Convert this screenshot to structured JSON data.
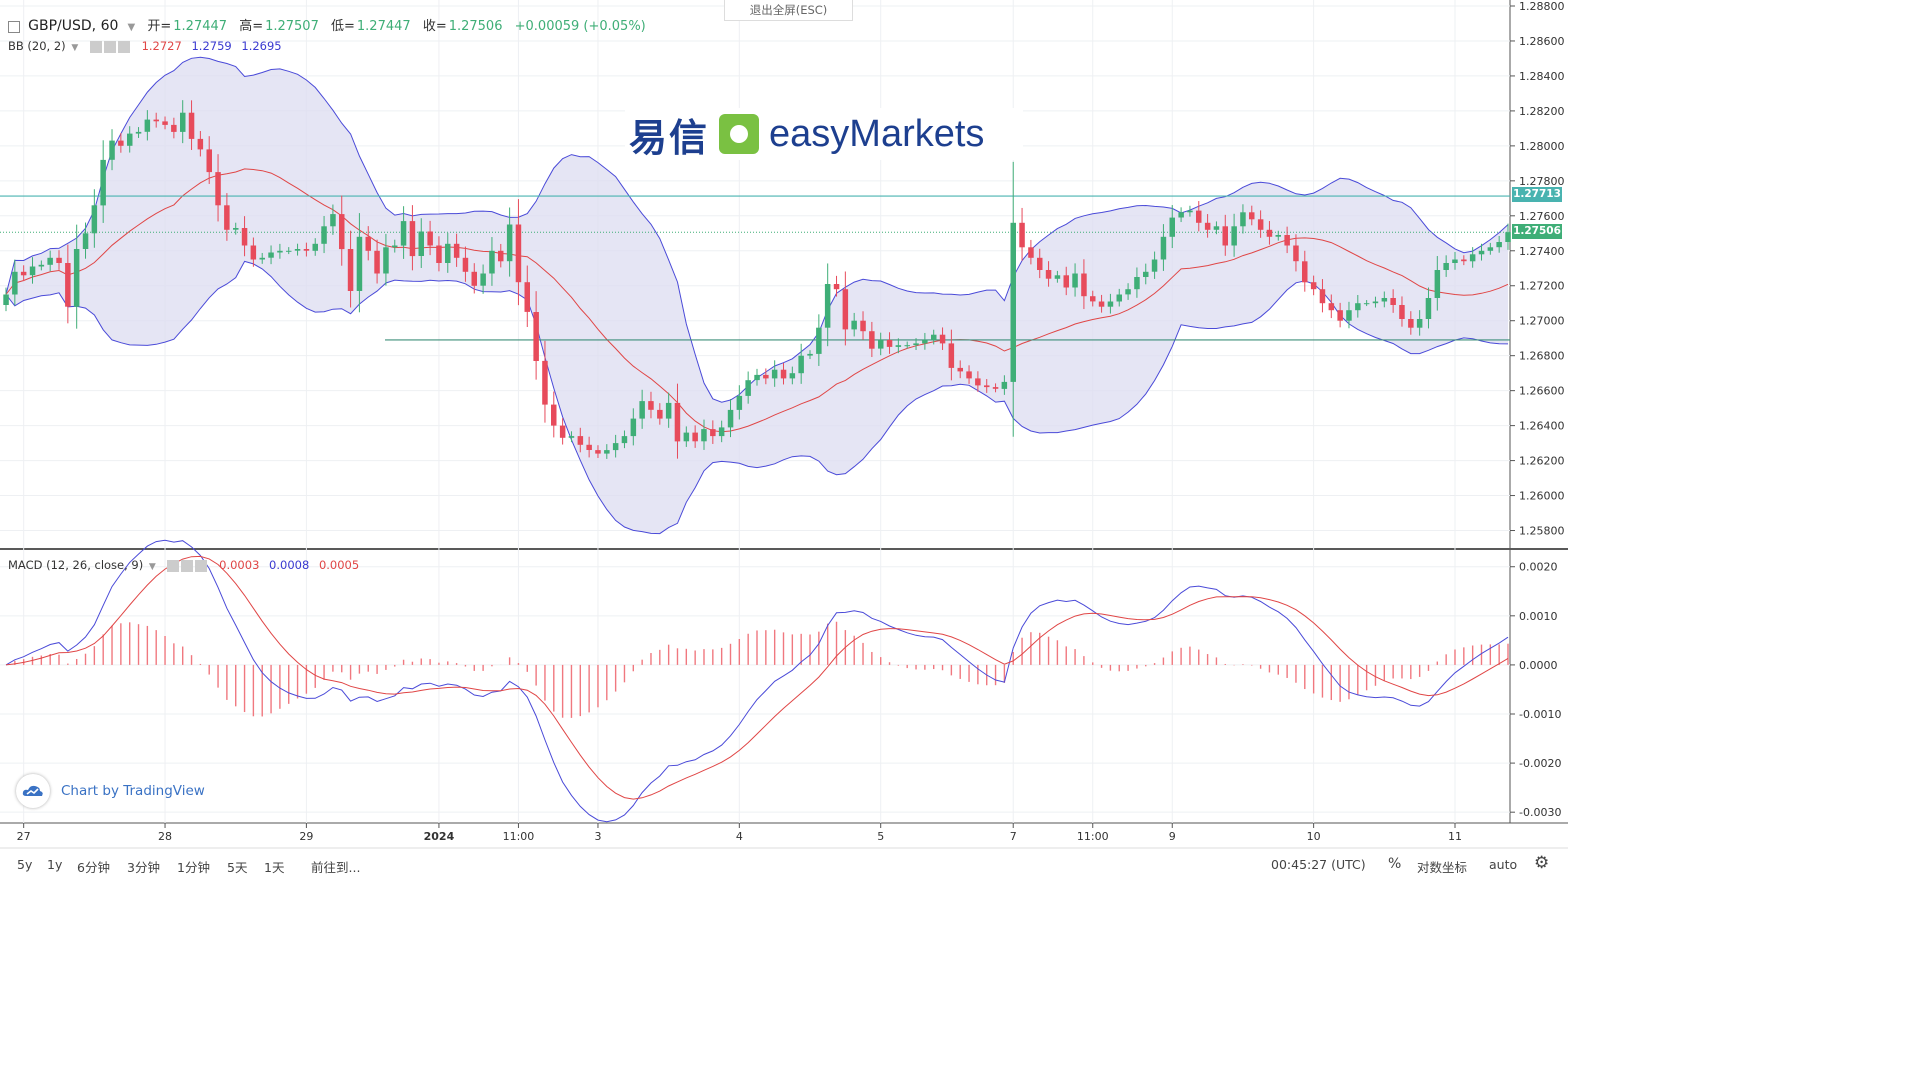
{
  "header": {
    "symbol": "GBP/USD, 60",
    "open_label": "开=",
    "open_value": "1.27447",
    "high_label": "高=",
    "high_value": "1.27507",
    "low_label": "低=",
    "low_value": "1.27447",
    "close_label": "收=",
    "close_value": "1.27506",
    "change": "+0.00059 (+0.05%)"
  },
  "bb": {
    "label": "BB (20, 2)",
    "v1": "1.2727",
    "v2": "1.2759",
    "v3": "1.2695"
  },
  "macd_legend": {
    "label": "MACD (12, 26, close, 9)",
    "v1": "0.0003",
    "v2": "0.0008",
    "v3": "0.0005"
  },
  "exit_fullscreen": "退出全屏(ESC)",
  "logo": {
    "cn": "易信",
    "en": "easyMarkets"
  },
  "attribution": "Chart by TradingView",
  "price_tags": {
    "resistance": "1.27713",
    "last": "1.27506"
  },
  "toolbar": {
    "ranges": [
      "5y",
      "1y",
      "6分钟",
      "3分钟",
      "1分钟",
      "5天",
      "1天"
    ],
    "goto": "前往到...",
    "time": "00:45:27 (UTC)",
    "percent": "%",
    "log": "对数坐标",
    "auto": "auto"
  },
  "colors": {
    "up": "#3fae77",
    "down": "#e74b5b",
    "band_fill": "#dcdcf0",
    "band_line": "#4a4ad8",
    "basis": "#e04646",
    "macd_line": "#4a4ad8",
    "signal_line": "#e04646",
    "hist": "#f0787f"
  },
  "chart_data": [
    {
      "type": "candlestick",
      "title": "GBP/USD, 60",
      "ylim": [
        1.257,
        1.288
      ],
      "y_ticks": [
        "1.28800",
        "1.28600",
        "1.28400",
        "1.28200",
        "1.28000",
        "1.27800",
        "1.27600",
        "1.27400",
        "1.27200",
        "1.27000",
        "1.26800",
        "1.26600",
        "1.26400",
        "1.26200",
        "1.26000",
        "1.25800"
      ],
      "x_ticks": [
        "27",
        "28",
        "29",
        "2024",
        "11:00",
        "3",
        "4",
        "5",
        "7",
        "11:00",
        "9",
        "10",
        "11"
      ],
      "x_tick_index": [
        2,
        18,
        34,
        49,
        58,
        67,
        83,
        99,
        114,
        123,
        132,
        148,
        164
      ],
      "horizontal_levels": [
        1.27713,
        1.2689
      ],
      "last_price": 1.27506,
      "close": [
        1.2715,
        1.2728,
        1.2726,
        1.2731,
        1.2732,
        1.2736,
        1.2733,
        1.2708,
        1.2741,
        1.275,
        1.2766,
        1.2792,
        1.2803,
        1.28,
        1.2807,
        1.2808,
        1.2815,
        1.2814,
        1.2812,
        1.2808,
        1.2819,
        1.2804,
        1.2798,
        1.2785,
        1.2766,
        1.2752,
        1.2753,
        1.2743,
        1.2735,
        1.2736,
        1.2739,
        1.274,
        1.274,
        1.2741,
        1.274,
        1.2744,
        1.2754,
        1.2761,
        1.2741,
        1.2717,
        1.2748,
        1.274,
        1.2727,
        1.2742,
        1.2743,
        1.2757,
        1.2737,
        1.2751,
        1.2743,
        1.2733,
        1.2744,
        1.2736,
        1.2728,
        1.272,
        1.2727,
        1.274,
        1.2734,
        1.2755,
        1.2722,
        1.2705,
        1.2677,
        1.2652,
        1.264,
        1.2633,
        1.2634,
        1.2629,
        1.2626,
        1.2624,
        1.2626,
        1.263,
        1.2634,
        1.2644,
        1.2654,
        1.2649,
        1.2644,
        1.2653,
        1.2631,
        1.2636,
        1.2631,
        1.2638,
        1.2634,
        1.2639,
        1.2649,
        1.2657,
        1.2666,
        1.2669,
        1.2667,
        1.2672,
        1.2667,
        1.267,
        1.268,
        1.2681,
        1.2696,
        1.2721,
        1.2718,
        1.2695,
        1.27,
        1.2694,
        1.2684,
        1.2689,
        1.2685,
        1.2686,
        1.2686,
        1.2687,
        1.2689,
        1.2692,
        1.2687,
        1.2673,
        1.2671,
        1.2667,
        1.2663,
        1.2662,
        1.2661,
        1.2665,
        1.2756,
        1.2742,
        1.2736,
        1.2729,
        1.2724,
        1.2726,
        1.2719,
        1.2727,
        1.2714,
        1.2711,
        1.2708,
        1.2711,
        1.2715,
        1.2718,
        1.2725,
        1.2728,
        1.2735,
        1.2748,
        1.2759,
        1.2762,
        1.2763,
        1.2756,
        1.2752,
        1.2754,
        1.2743,
        1.2754,
        1.2762,
        1.2758,
        1.2752,
        1.2748,
        1.2749,
        1.2743,
        1.2734,
        1.2722,
        1.2718,
        1.271,
        1.2706,
        1.27,
        1.2706,
        1.271,
        1.271,
        1.2711,
        1.2713,
        1.2709,
        1.2701,
        1.2696,
        1.2701,
        1.2713,
        1.2729,
        1.2733,
        1.2735,
        1.2734,
        1.2738,
        1.274,
        1.2742,
        1.2745,
        1.27506
      ]
    },
    {
      "type": "line",
      "title": "MACD (12, 26, close, 9)",
      "ylim": [
        -0.0032,
        0.0023
      ],
      "y_ticks": [
        "0.0020",
        "0.0010",
        "0.0000",
        "-0.0010",
        "-0.0020",
        "-0.0030"
      ]
    }
  ]
}
